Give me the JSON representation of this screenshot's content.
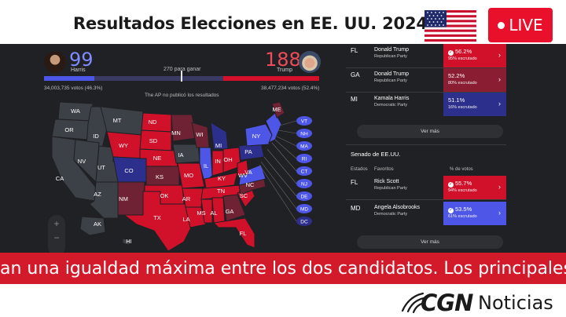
{
  "header": {
    "headline": "Resultados Elecciones en EE. UU. 2024",
    "flag_icon": "us-flag-icon",
    "live_label": "LIVE",
    "live_color": "#e8102b"
  },
  "race": {
    "harris": {
      "name": "Harris",
      "electoral_votes": "99",
      "popular_votes": "34,003,735 votos (46.3%)",
      "color": "#4e56e8"
    },
    "trump": {
      "name": "Trump",
      "electoral_votes": "188",
      "popular_votes": "38,477,234 votos (52.4%)",
      "color": "#d4102a"
    },
    "to_win": "270 para ganar",
    "harris_bar_fraction": 0.183,
    "trump_bar_fraction": 0.349,
    "ap_note": "The AP no publicó los resultados"
  },
  "map": {
    "states": {
      "WA": "WA",
      "OR": "OR",
      "ID": "ID",
      "MT": "MT",
      "ND": "ND",
      "MN": "MN",
      "WI": "WI",
      "MI": "MI",
      "SD": "SD",
      "WY": "WY",
      "NV": "NV",
      "UT": "UT",
      "CO": "CO",
      "NE": "NE",
      "IA": "IA",
      "IL": "IL",
      "IN": "IN",
      "OH": "OH",
      "PA": "PA",
      "NY": "NY",
      "ME": "ME",
      "CA": "CA",
      "AZ": "AZ",
      "NM": "NM",
      "KS": "KS",
      "MO": "MO",
      "KY": "KY",
      "WV": "WV",
      "VA": "VA",
      "TN": "TN",
      "NC": "NC",
      "SC": "SC",
      "OK": "OK",
      "AR": "AR",
      "TX": "TX",
      "LA": "LA",
      "MS": "MS",
      "AL": "AL",
      "GA": "GA",
      "FL": "FL",
      "AK": "AK",
      "HI": "HI"
    },
    "northeast_badges": [
      "VT",
      "NH",
      "MA",
      "RI",
      "CT",
      "NJ",
      "DE",
      "MD",
      "DC"
    ],
    "zoom_in": "+",
    "zoom_out": "−"
  },
  "presidential_results": [
    {
      "state": "FL",
      "candidate": "Donald Trump",
      "party": "Republican Party",
      "pct": "56.2%",
      "reported": "95% escrutado",
      "style": "win-red",
      "called": true
    },
    {
      "state": "GA",
      "candidate": "Donald Trump",
      "party": "Republican Party",
      "pct": "52.2%",
      "reported": "80% escrutado",
      "style": "red",
      "called": false
    },
    {
      "state": "MI",
      "candidate": "Kamala Harris",
      "party": "Democratic Party",
      "pct": "51.1%",
      "reported": "16% escrutado",
      "style": "blue",
      "called": false
    }
  ],
  "ver_mas_1": "Ver más",
  "senate": {
    "title": "Senado de EE.UU.",
    "col_states": "Estados",
    "col_favorites": "Favoritos",
    "col_pct": "% de votos",
    "rows": [
      {
        "state": "FL",
        "candidate": "Rick Scott",
        "party": "Republican Party",
        "pct": "55.7%",
        "reported": "94% escrutado",
        "style": "win-red",
        "called": true
      },
      {
        "state": "MD",
        "candidate": "Angela Alsobrooks",
        "party": "Democratic Party",
        "pct": "53.5%",
        "reported": "61% escrutado",
        "style": "win-blue",
        "called": true
      }
    ]
  },
  "ver_mas_2": "Ver más",
  "ticker": {
    "text": "an una  igualdad máxima entre los dos candidatos. Los principales promed"
  },
  "footer": {
    "brand_mark": "CGN",
    "brand_name": "Noticias"
  }
}
